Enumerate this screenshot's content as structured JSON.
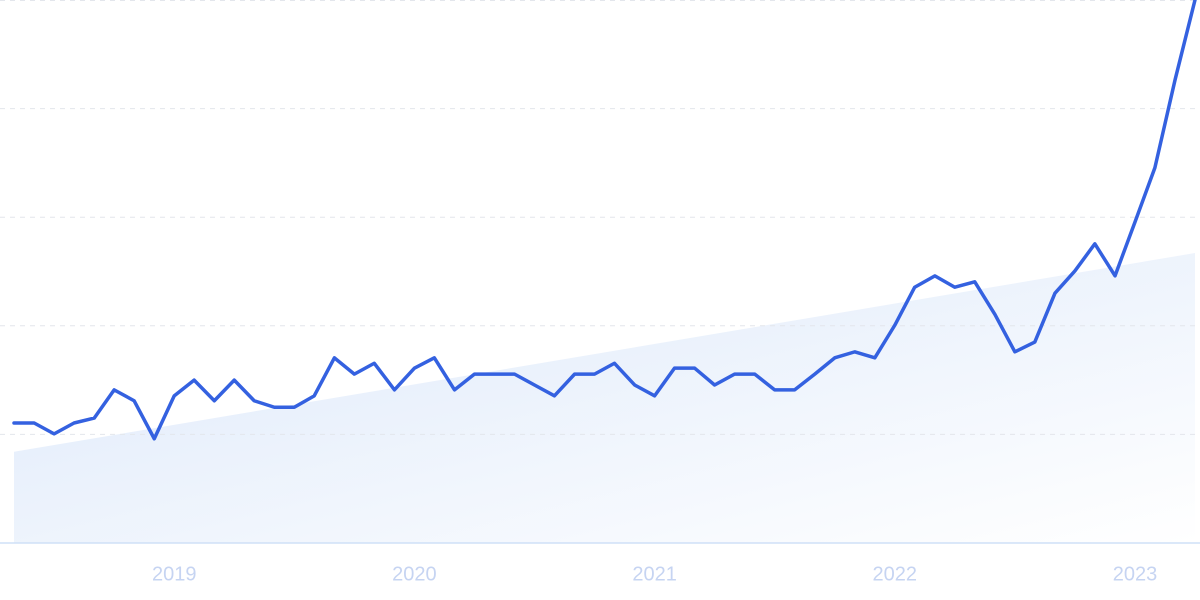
{
  "chart_data": {
    "type": "line",
    "x": [
      2018.333,
      2018.417,
      2018.5,
      2018.583,
      2018.667,
      2018.75,
      2018.833,
      2018.917,
      2019.0,
      2019.083,
      2019.167,
      2019.25,
      2019.333,
      2019.417,
      2019.5,
      2019.583,
      2019.667,
      2019.75,
      2019.833,
      2019.917,
      2020.0,
      2020.083,
      2020.167,
      2020.25,
      2020.333,
      2020.417,
      2020.5,
      2020.583,
      2020.667,
      2020.75,
      2020.833,
      2020.917,
      2021.0,
      2021.083,
      2021.167,
      2021.25,
      2021.333,
      2021.417,
      2021.5,
      2021.583,
      2021.667,
      2021.75,
      2021.833,
      2021.917,
      2022.0,
      2022.083,
      2022.167,
      2022.25,
      2022.333,
      2022.417,
      2022.5,
      2022.583,
      2022.667,
      2022.75,
      2022.833,
      2022.917,
      2023.0,
      2023.083,
      2023.167,
      2023.25
    ],
    "series": [
      {
        "color": "#3461e0",
        "values": [
          22.1,
          22.1,
          20.1,
          22.1,
          23.0,
          28.2,
          26.2,
          19.2,
          27.1,
          30.0,
          26.2,
          30.0,
          26.2,
          25.0,
          25.0,
          27.1,
          34.1,
          31.1,
          33.1,
          28.2,
          32.2,
          34.1,
          28.2,
          31.1,
          31.1,
          31.1,
          29.1,
          27.1,
          31.1,
          31.1,
          33.1,
          29.1,
          27.1,
          32.2,
          32.2,
          29.1,
          31.1,
          31.1,
          28.2,
          28.2,
          31.1,
          34.1,
          35.2,
          34.1,
          40.1,
          47.1,
          49.2,
          47.1,
          48.1,
          42.1,
          35.2,
          37.0,
          46.0,
          50.1,
          55.1,
          49.2,
          59.1,
          69.1,
          85.3,
          100
        ]
      }
    ],
    "trend": {
      "color": "#dce8fa",
      "x": [
        2018.333,
        2023.25
      ],
      "values": [
        16.8,
        53.4
      ]
    },
    "xlim": [
      2018.333,
      2023.25
    ],
    "xticks": [
      2019,
      2020,
      2021,
      2022,
      2023
    ],
    "ylim": [
      0,
      100
    ],
    "grid_lines": [
      20,
      40,
      60,
      80,
      100
    ],
    "grid": true
  }
}
